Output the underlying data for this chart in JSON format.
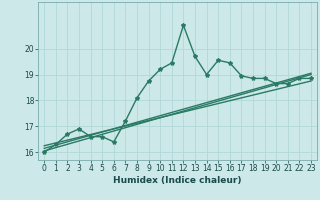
{
  "title": "",
  "xlabel": "Humidex (Indice chaleur)",
  "x": [
    0,
    1,
    2,
    3,
    4,
    5,
    6,
    7,
    8,
    9,
    10,
    11,
    12,
    13,
    14,
    15,
    16,
    17,
    18,
    19,
    20,
    21,
    22,
    23
  ],
  "y_main": [
    16.0,
    16.3,
    16.7,
    16.9,
    16.6,
    16.6,
    16.4,
    17.2,
    18.1,
    18.75,
    19.2,
    19.45,
    20.9,
    19.7,
    19.0,
    19.55,
    19.45,
    18.95,
    18.85,
    18.85,
    18.65,
    18.65,
    18.85,
    18.85
  ],
  "regression_lines": [
    {
      "x0": 0,
      "y0": 16.05,
      "x1": 23,
      "y1": 19.0
    },
    {
      "x0": 0,
      "y0": 16.15,
      "x1": 23,
      "y1": 19.05
    },
    {
      "x0": 0,
      "y0": 16.25,
      "x1": 23,
      "y1": 18.75
    }
  ],
  "line_color": "#2a7a65",
  "bg_color": "#cce8e8",
  "grid_color": "#b0d8d8",
  "ylim": [
    15.7,
    21.8
  ],
  "xlim": [
    -0.5,
    23.5
  ],
  "yticks": [
    16,
    17,
    18,
    19,
    20
  ],
  "xticks": [
    0,
    1,
    2,
    3,
    4,
    5,
    6,
    7,
    8,
    9,
    10,
    11,
    12,
    13,
    14,
    15,
    16,
    17,
    18,
    19,
    20,
    21,
    22,
    23
  ],
  "marker_size": 3.0,
  "line_width": 1.0,
  "tick_fontsize": 5.5,
  "xlabel_fontsize": 6.5
}
